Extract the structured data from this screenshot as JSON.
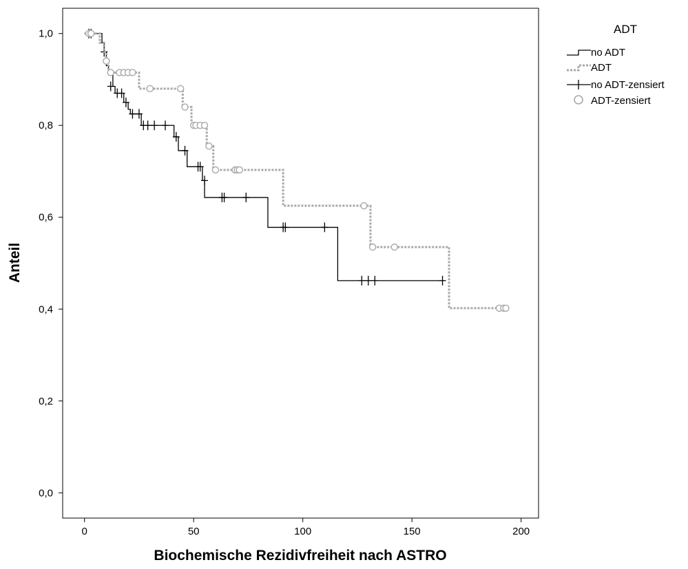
{
  "chart_data": {
    "type": "line",
    "subtype": "kaplan-meier",
    "title": "",
    "xlabel": "Biochemische Rezidivfreiheit nach ASTRO",
    "ylabel": "Anteil",
    "xlim": [
      -10,
      208
    ],
    "ylim": [
      -0.055,
      1.055
    ],
    "xticks": [
      0,
      50,
      100,
      150,
      200
    ],
    "xtick_labels": [
      "0",
      "50",
      "100",
      "150",
      "200"
    ],
    "yticks": [
      0.0,
      0.2,
      0.4,
      0.6,
      0.8,
      1.0
    ],
    "ytick_labels": [
      "0,0",
      "0,2",
      "0,4",
      "0,6",
      "0,8",
      "1,0"
    ],
    "grid": false,
    "legend": {
      "title": "ADT",
      "placement": "right-outside",
      "entries": [
        "no ADT",
        "ADT",
        "no ADT-zensiert",
        "ADT-zensiert"
      ]
    },
    "series": [
      {
        "name": "no ADT",
        "style": "solid",
        "color": "#000000",
        "steps": [
          [
            0,
            1.0
          ],
          [
            8,
            0.98
          ],
          [
            9,
            0.96
          ],
          [
            10,
            0.93
          ],
          [
            11,
            0.91
          ],
          [
            13,
            0.885
          ],
          [
            14,
            0.87
          ],
          [
            18,
            0.85
          ],
          [
            20,
            0.835
          ],
          [
            21,
            0.825
          ],
          [
            26,
            0.8
          ],
          [
            41,
            0.775
          ],
          [
            43,
            0.745
          ],
          [
            47,
            0.71
          ],
          [
            54,
            0.68
          ],
          [
            55,
            0.643
          ],
          [
            84,
            0.578
          ],
          [
            116,
            0.462
          ],
          [
            165,
            0.462
          ]
        ],
        "censored": [
          [
            2,
            1.0
          ],
          [
            3,
            1.0
          ],
          [
            9,
            0.96
          ],
          [
            12,
            0.885
          ],
          [
            15,
            0.87
          ],
          [
            17,
            0.87
          ],
          [
            19,
            0.85
          ],
          [
            22,
            0.825
          ],
          [
            25,
            0.825
          ],
          [
            27,
            0.8
          ],
          [
            29,
            0.8
          ],
          [
            32,
            0.8
          ],
          [
            37,
            0.8
          ],
          [
            42,
            0.775
          ],
          [
            46,
            0.745
          ],
          [
            52,
            0.71
          ],
          [
            53,
            0.71
          ],
          [
            55,
            0.68
          ],
          [
            63,
            0.643
          ],
          [
            64,
            0.643
          ],
          [
            74,
            0.643
          ],
          [
            91,
            0.578
          ],
          [
            92,
            0.578
          ],
          [
            110,
            0.578
          ],
          [
            127,
            0.462
          ],
          [
            130,
            0.462
          ],
          [
            133,
            0.462
          ],
          [
            164,
            0.462
          ]
        ]
      },
      {
        "name": "ADT",
        "style": "dotted",
        "color": "#a8a8a8",
        "steps": [
          [
            0,
            1.0
          ],
          [
            7,
            0.98
          ],
          [
            9,
            0.96
          ],
          [
            10,
            0.94
          ],
          [
            11,
            0.915
          ],
          [
            25,
            0.88
          ],
          [
            45,
            0.84
          ],
          [
            49,
            0.8
          ],
          [
            56,
            0.755
          ],
          [
            59,
            0.703
          ],
          [
            91,
            0.625
          ],
          [
            131,
            0.535
          ],
          [
            167,
            0.402
          ],
          [
            193,
            0.402
          ]
        ],
        "censored": [
          [
            2,
            1.0
          ],
          [
            3,
            1.0
          ],
          [
            10,
            0.94
          ],
          [
            12,
            0.915
          ],
          [
            16,
            0.915
          ],
          [
            18,
            0.915
          ],
          [
            20,
            0.915
          ],
          [
            22,
            0.915
          ],
          [
            30,
            0.88
          ],
          [
            44,
            0.88
          ],
          [
            46,
            0.84
          ],
          [
            50,
            0.8
          ],
          [
            51,
            0.8
          ],
          [
            53,
            0.8
          ],
          [
            55,
            0.8
          ],
          [
            57,
            0.755
          ],
          [
            60,
            0.703
          ],
          [
            69,
            0.703
          ],
          [
            70,
            0.703
          ],
          [
            71,
            0.703
          ],
          [
            128,
            0.625
          ],
          [
            132,
            0.535
          ],
          [
            142,
            0.535
          ],
          [
            190,
            0.402
          ],
          [
            192,
            0.402
          ],
          [
            193,
            0.402
          ]
        ]
      }
    ]
  }
}
